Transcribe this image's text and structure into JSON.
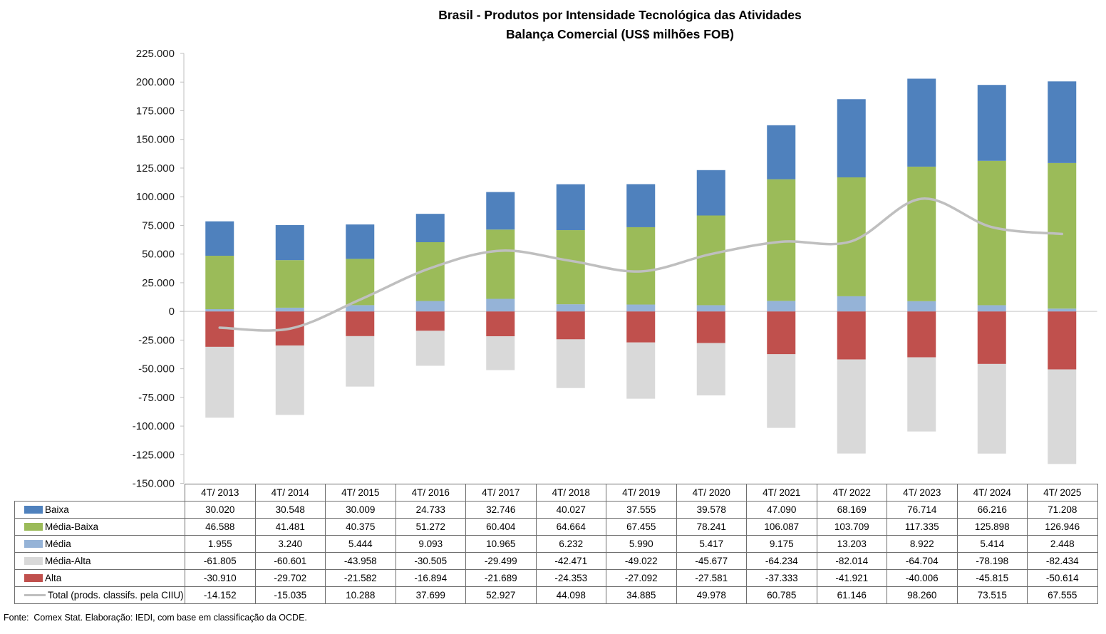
{
  "title": {
    "line1": "Brasil - Produtos por Intensidade Tecnológica das Atividades",
    "line2": "Balança Comercial (US$ milhões FOB)"
  },
  "footer": {
    "text": "Fonte:  Comex Stat. Elaboração: IEDI, com base em classificação da OCDE."
  },
  "chart_data": {
    "type": "bar",
    "subtype": "stacked-columns-with-smoothed-line",
    "title": "Brasil - Produtos por Intensidade Tecnológica das Atividades Balança Comercial (US$ milhões FOB)",
    "categories": [
      "4T/ 2013",
      "4T/ 2014",
      "4T/ 2015",
      "4T/ 2016",
      "4T/ 2017",
      "4T/ 2018",
      "4T/ 2019",
      "4T/ 2020",
      "4T/ 2021",
      "4T/ 2022",
      "4T/ 2023",
      "4T/ 2024",
      "4T/ 2025"
    ],
    "series": [
      {
        "name": "Baixa",
        "type": "bar",
        "color": "#4F81BD",
        "values": [
          30020,
          30548,
          30009,
          24733,
          32746,
          40027,
          37555,
          39578,
          47090,
          68169,
          76714,
          66216,
          71208
        ]
      },
      {
        "name": "Média-Baixa",
        "type": "bar",
        "color": "#9BBB59",
        "values": [
          46588,
          41481,
          40375,
          51272,
          60404,
          64664,
          67455,
          78241,
          106087,
          103709,
          117335,
          125898,
          126946
        ]
      },
      {
        "name": "Média",
        "type": "bar",
        "color": "#95B3D7",
        "values": [
          1955,
          3240,
          5444,
          9093,
          10965,
          6232,
          5990,
          5417,
          9175,
          13203,
          8922,
          5414,
          2448
        ]
      },
      {
        "name": "Média-Alta",
        "type": "bar",
        "color": "#D9D9D9",
        "values": [
          -61805,
          -60601,
          -43958,
          -30505,
          -29499,
          -42471,
          -49022,
          -45677,
          -64234,
          -82014,
          -64704,
          -78198,
          -82434
        ]
      },
      {
        "name": "Alta",
        "type": "bar",
        "color": "#C0504D",
        "values": [
          -30910,
          -29702,
          -21582,
          -16894,
          -21689,
          -24353,
          -27092,
          -27581,
          -37333,
          -41921,
          -40006,
          -45815,
          -50614
        ]
      },
      {
        "name": "Total (prods. classifs. pela CIIU)",
        "type": "line",
        "color": "#BFBFBF",
        "values": [
          -14152,
          -15035,
          10288,
          37699,
          52927,
          44098,
          34885,
          49978,
          60785,
          61146,
          98260,
          73515,
          67555
        ]
      }
    ],
    "stack_order": [
      "Alta",
      "Média-Alta",
      "Média",
      "Média-Baixa",
      "Baixa"
    ],
    "ylim": [
      -150000,
      225000
    ],
    "ytick_step": 25000,
    "ytick_labels": [
      "225.000",
      "200.000",
      "175.000",
      "150.000",
      "125.000",
      "100.000",
      "75.000",
      "50.000",
      "25.000",
      "0",
      "-25.000",
      "-50.000",
      "-75.000",
      "-100.000",
      "-125.000",
      "-150.000"
    ],
    "grid": "zero-line-only",
    "legend_position": "data-table-left-column",
    "value_format": "thousands-dot",
    "axis_color": "#BFBFBF",
    "zero_line_color": "#C6C6C6",
    "table_border_color": "#6e6e6e"
  }
}
